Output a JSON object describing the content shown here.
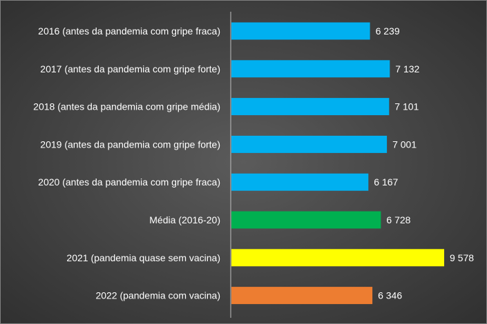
{
  "chart_data": {
    "type": "bar",
    "orientation": "horizontal",
    "categories": [
      "2016 (antes da pandemia com gripe fraca)",
      "2017 (antes da pandemia com gripe forte)",
      "2018 (antes da pandemia com gripe média)",
      "2019 (antes da pandemia com gripe forte)",
      "2020 (antes da pandemia com gripe fraca)",
      "Média (2016-20)",
      "2021 (pandemia quase sem vacina)",
      "2022 (pandemia com vacina)"
    ],
    "values": [
      6239,
      7132,
      7101,
      7001,
      6167,
      6728,
      9578,
      6346
    ],
    "value_labels": [
      "6 239",
      "7 132",
      "7 101",
      "7 001",
      "6 167",
      "6 728",
      "9 578",
      "6 346"
    ],
    "bar_colors": [
      "#00b0f0",
      "#00b0f0",
      "#00b0f0",
      "#00b0f0",
      "#00b0f0",
      "#00b050",
      "#ffff00",
      "#ed7d31"
    ],
    "xlim": [
      0,
      9578
    ],
    "title": "",
    "xlabel": "",
    "ylabel": "",
    "grid": false,
    "legend": "none"
  },
  "colors": {
    "background": "#474747",
    "text": "#ffffff",
    "axis": "#bfbfbf"
  }
}
